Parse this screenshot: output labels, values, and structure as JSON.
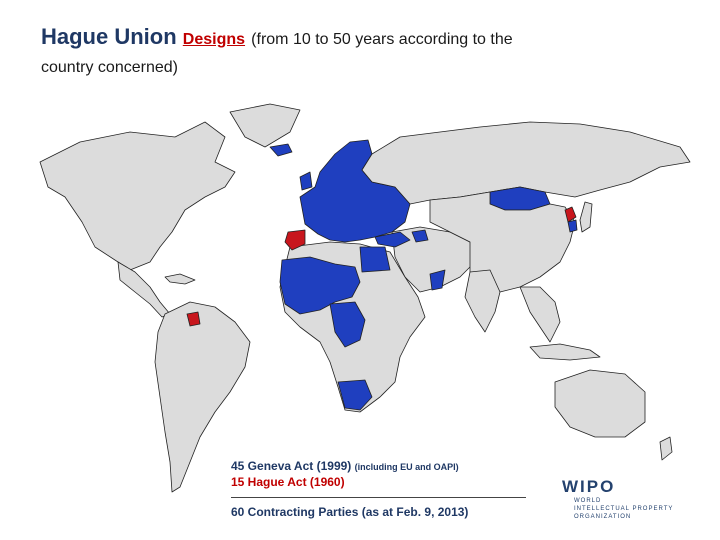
{
  "title": {
    "main": "Hague Union",
    "link": "Designs",
    "rest": "(from 10 to 50 years according to the",
    "line2": "country concerned)"
  },
  "legend": {
    "geneva": "45 Geneva Act (1999)",
    "geneva_note": "(including EU and OAPI)",
    "hague": "15 Hague Act (1960)",
    "total": "60 Contracting Parties (as at Feb. 9, 2013)"
  },
  "logo": {
    "name": "WIPO",
    "sub": [
      "WORLD",
      "INTELLECTUAL PROPERTY",
      "ORGANIZATION"
    ]
  },
  "colors": {
    "geneva": "#1f3fbf",
    "hague": "#c8161d",
    "non_member": "#dcdcdc",
    "border": "#222222"
  }
}
